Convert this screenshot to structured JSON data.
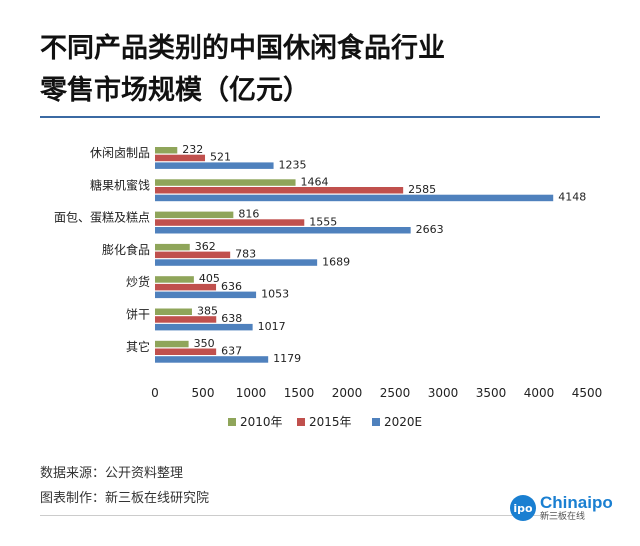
{
  "title_line1": "不同产品类别的中国休闲食品行业",
  "title_line2": "零售市场规模（亿元）",
  "chart_data": {
    "type": "bar",
    "orientation": "horizontal",
    "categories": [
      "休闲卤制品",
      "糖果机蜜饯",
      "面包、蛋糕及糕点",
      "膨化食品",
      "炒货",
      "饼干",
      "其它"
    ],
    "series": [
      {
        "name": "2010年",
        "color": "#8fa55a",
        "values": [
          232,
          1464,
          816,
          362,
          405,
          385,
          350
        ]
      },
      {
        "name": "2015年",
        "color": "#c0504d",
        "values": [
          521,
          2585,
          1555,
          783,
          636,
          638,
          637
        ]
      },
      {
        "name": "2020E",
        "color": "#4f81bd",
        "values": [
          1235,
          4148,
          2663,
          1689,
          1053,
          1017,
          1179
        ]
      }
    ],
    "xlim": [
      0,
      4500
    ],
    "xticks": [
      0,
      500,
      1000,
      1500,
      2000,
      2500,
      3000,
      3500,
      4000,
      4500
    ],
    "grid": false,
    "legend": "bottom"
  },
  "footer": {
    "source": "数据来源：公开资料整理",
    "maker": "图表制作：新三板在线研究院"
  },
  "logo": {
    "mark": "ipo",
    "name": "Chinaipo",
    "sub": "新三板在线"
  }
}
